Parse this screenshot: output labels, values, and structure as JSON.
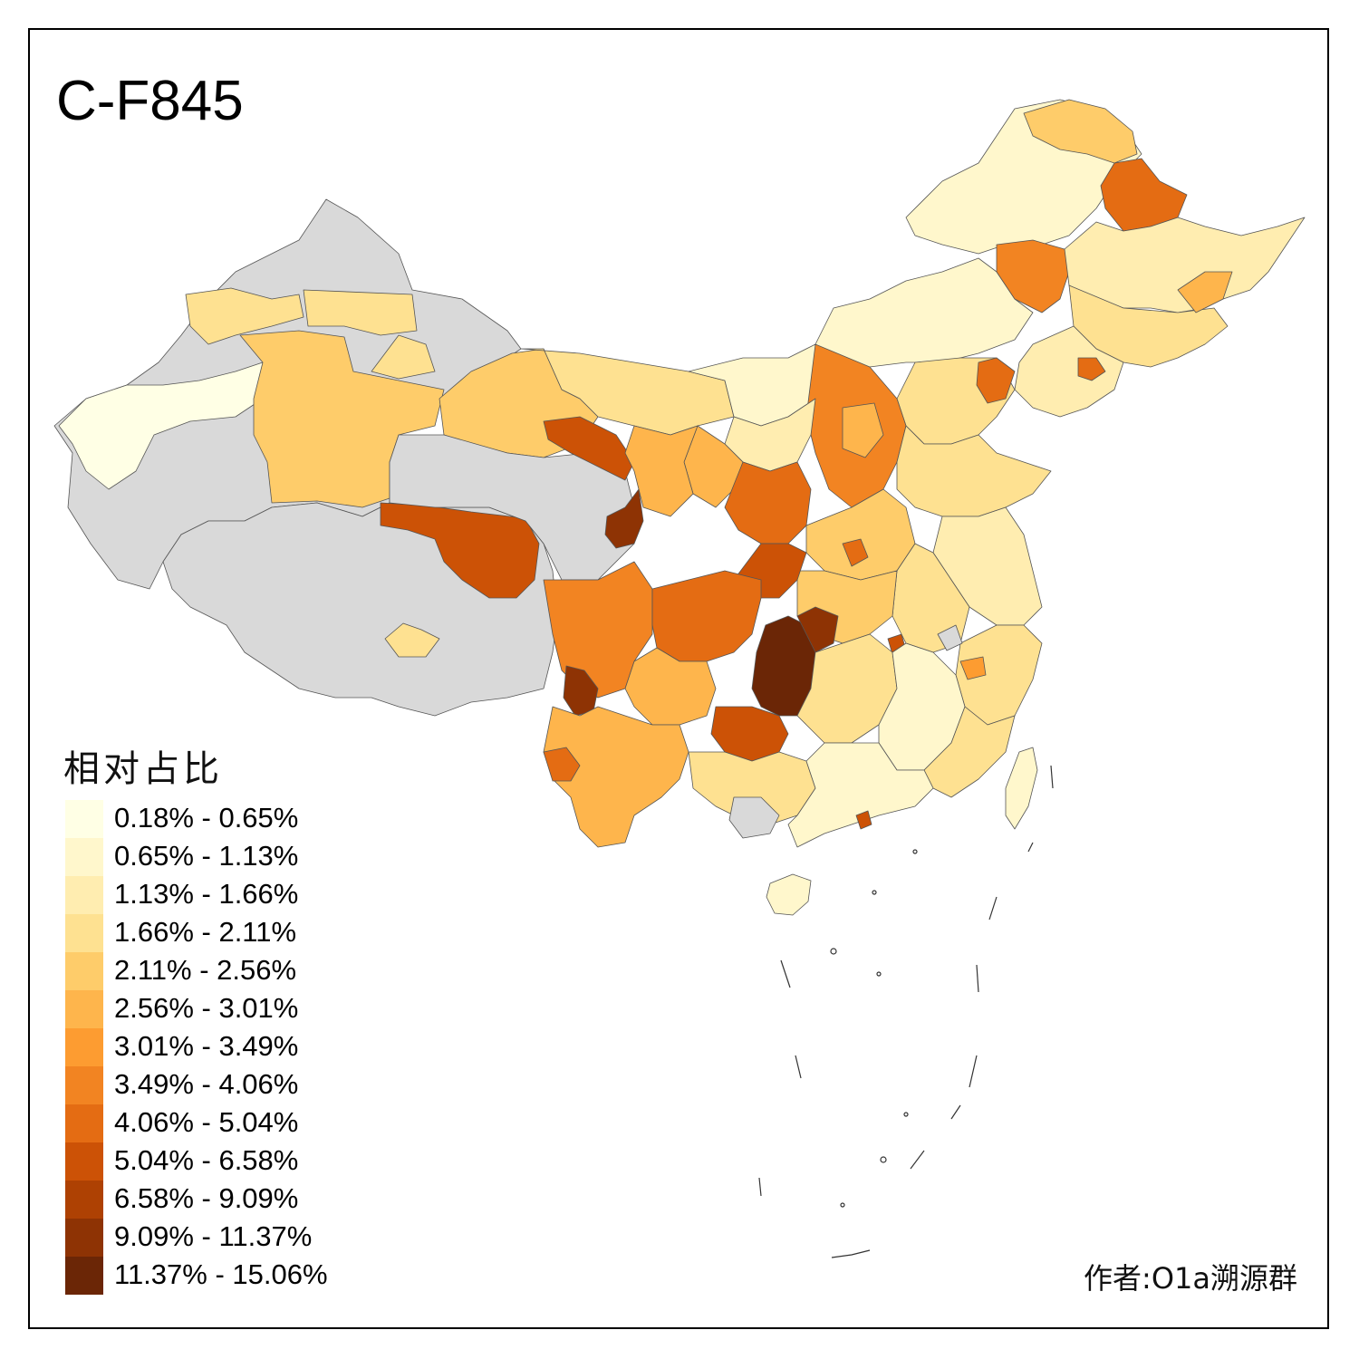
{
  "title": "C-F845",
  "legend": {
    "title": "相对占比",
    "items": [
      {
        "label": "0.18% - 0.65%",
        "color": "#FFFFE5"
      },
      {
        "label": "0.65% - 1.13%",
        "color": "#FFF7CC"
      },
      {
        "label": "1.13% - 1.66%",
        "color": "#FFEDB0"
      },
      {
        "label": "1.66% - 2.11%",
        "color": "#FEE191"
      },
      {
        "label": "2.11% - 2.56%",
        "color": "#FECC6A"
      },
      {
        "label": "2.56% - 3.01%",
        "color": "#FEB54C"
      },
      {
        "label": "3.01% - 3.49%",
        "color": "#FD9C31"
      },
      {
        "label": "3.49% - 4.06%",
        "color": "#F28422"
      },
      {
        "label": "4.06% - 5.04%",
        "color": "#E46C13"
      },
      {
        "label": "5.04% - 6.58%",
        "color": "#CC5206"
      },
      {
        "label": "6.58% - 9.09%",
        "color": "#AE4103"
      },
      {
        "label": "9.09% - 11.37%",
        "color": "#8E3304"
      },
      {
        "label": "11.37% - 15.06%",
        "color": "#6B2606"
      }
    ]
  },
  "no_data_color": "#D9D9D9",
  "credit": "作者:O1a溯源群"
}
